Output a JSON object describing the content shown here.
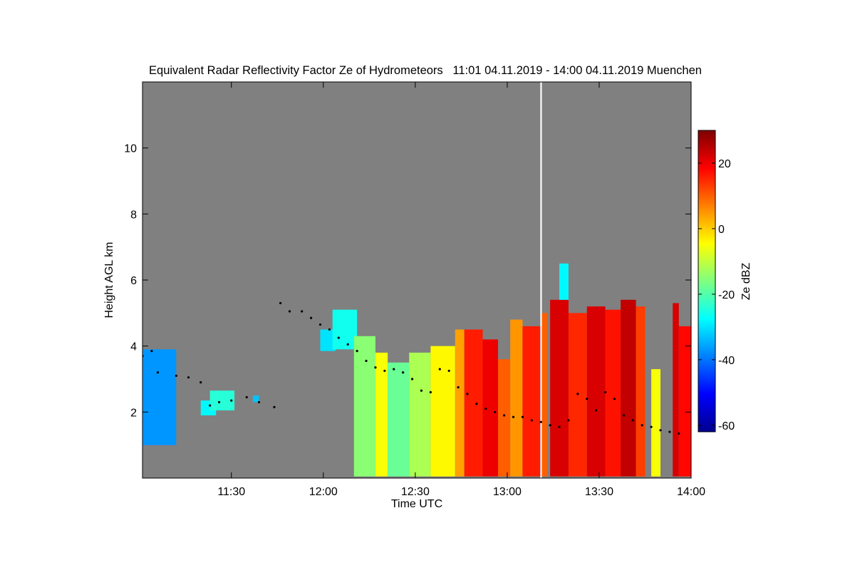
{
  "chart_data": {
    "type": "heatmap",
    "title": "Equivalent Radar Reflectivity Factor Ze of Hydrometeors   11:01 04.11.2019 - 14:00 04.11.2019 Muenchen",
    "xlabel": "Time UTC",
    "ylabel": "Height AGL km",
    "xlim_minutes_utc": [
      661,
      840
    ],
    "ylim_km": [
      0,
      12
    ],
    "x_ticks": [
      {
        "minute": 690,
        "label": "11:30"
      },
      {
        "minute": 720,
        "label": "12:00"
      },
      {
        "minute": 750,
        "label": "12:30"
      },
      {
        "minute": 780,
        "label": "13:00"
      },
      {
        "minute": 810,
        "label": "13:30"
      },
      {
        "minute": 840,
        "label": "14:00"
      }
    ],
    "y_ticks": [
      {
        "value": 2,
        "label": "2"
      },
      {
        "value": 4,
        "label": "4"
      },
      {
        "value": 6,
        "label": "6"
      },
      {
        "value": 8,
        "label": "8"
      },
      {
        "value": 10,
        "label": "10"
      }
    ],
    "colorbar": {
      "label": "Ze dBZ",
      "range": [
        -62,
        30
      ],
      "ticks": [
        {
          "value": -60,
          "label": "-60"
        },
        {
          "value": -40,
          "label": "-40"
        },
        {
          "value": -20,
          "label": "-20"
        },
        {
          "value": 0,
          "label": "0"
        },
        {
          "value": 20,
          "label": "20"
        }
      ],
      "colormap": "jet"
    },
    "colors": {
      "no_signal": "#808080",
      "missing_data": "#ffffff",
      "cloud_base_marker": "#000000"
    },
    "echo_regions": [
      {
        "t0": 661,
        "t1": 672,
        "h_bottom": 1.0,
        "h_top": 3.9,
        "ze": -37
      },
      {
        "t0": 680,
        "t1": 685,
        "h_bottom": 1.9,
        "h_top": 2.35,
        "ze": -28
      },
      {
        "t0": 683,
        "t1": 691,
        "h_bottom": 2.05,
        "h_top": 2.65,
        "ze": -24
      },
      {
        "t0": 697,
        "t1": 699,
        "h_bottom": 2.3,
        "h_top": 2.5,
        "ze": -33
      },
      {
        "t0": 719,
        "t1": 724,
        "h_bottom": 3.85,
        "h_top": 4.5,
        "ze": -30
      },
      {
        "t0": 723,
        "t1": 731,
        "h_bottom": 3.9,
        "h_top": 5.1,
        "ze": -26
      },
      {
        "t0": 730,
        "t1": 737,
        "h_bottom": 0.05,
        "h_top": 4.3,
        "ze": -15
      },
      {
        "t0": 737,
        "t1": 741,
        "h_bottom": 0.05,
        "h_top": 3.8,
        "ze": -5
      },
      {
        "t0": 741,
        "t1": 748,
        "h_bottom": 0.05,
        "h_top": 3.5,
        "ze": -18
      },
      {
        "t0": 748,
        "t1": 755,
        "h_bottom": 0.05,
        "h_top": 3.8,
        "ze": -12
      },
      {
        "t0": 755,
        "t1": 763,
        "h_bottom": 0.05,
        "h_top": 4.0,
        "ze": -4
      },
      {
        "t0": 763,
        "t1": 766,
        "h_bottom": 0.05,
        "h_top": 4.5,
        "ze": 4
      },
      {
        "t0": 766,
        "t1": 772,
        "h_bottom": 0.05,
        "h_top": 4.5,
        "ze": 16
      },
      {
        "t0": 772,
        "t1": 777,
        "h_bottom": 0.05,
        "h_top": 4.2,
        "ze": 20
      },
      {
        "t0": 777,
        "t1": 781,
        "h_bottom": 0.05,
        "h_top": 3.6,
        "ze": 10
      },
      {
        "t0": 781,
        "t1": 785,
        "h_bottom": 0.05,
        "h_top": 4.8,
        "ze": 5
      },
      {
        "t0": 785,
        "t1": 791,
        "h_bottom": 0.05,
        "h_top": 4.6,
        "ze": 16
      },
      {
        "t0": 791,
        "t1": 793,
        "h_bottom": 0.05,
        "h_top": 5.0,
        "ze": 10
      },
      {
        "t0": 794,
        "t1": 800,
        "h_bottom": 0.05,
        "h_top": 5.4,
        "ze": 22
      },
      {
        "t0": 800,
        "t1": 806,
        "h_bottom": 0.05,
        "h_top": 5.0,
        "ze": 15
      },
      {
        "t0": 806,
        "t1": 812,
        "h_bottom": 0.05,
        "h_top": 5.2,
        "ze": 22
      },
      {
        "t0": 812,
        "t1": 817,
        "h_bottom": 0.05,
        "h_top": 5.1,
        "ze": 17
      },
      {
        "t0": 817,
        "t1": 822,
        "h_bottom": 0.05,
        "h_top": 5.4,
        "ze": 24
      },
      {
        "t0": 822,
        "t1": 825,
        "h_bottom": 0.05,
        "h_top": 5.2,
        "ze": 13
      },
      {
        "t0": 827,
        "t1": 830,
        "h_bottom": 0.05,
        "h_top": 3.3,
        "ze": -5
      },
      {
        "t0": 797,
        "t1": 800,
        "h_bottom": 5.4,
        "h_top": 6.5,
        "ze": -28
      },
      {
        "t0": 834,
        "t1": 836,
        "h_bottom": 0.05,
        "h_top": 5.3,
        "ze": 22
      },
      {
        "t0": 836,
        "t1": 840,
        "h_bottom": 0.05,
        "h_top": 4.6,
        "ze": 18
      }
    ],
    "missing_intervals": [
      {
        "t0": 790.8,
        "t1": 791.3,
        "h_bottom": 0.0,
        "h_top": 12.0
      }
    ],
    "cloud_base_points": [
      {
        "t": 661,
        "h": 3.7
      },
      {
        "t": 664,
        "h": 3.85
      },
      {
        "t": 666,
        "h": 3.2
      },
      {
        "t": 672,
        "h": 3.1
      },
      {
        "t": 676,
        "h": 3.05
      },
      {
        "t": 680,
        "h": 2.9
      },
      {
        "t": 683,
        "h": 2.2
      },
      {
        "t": 686,
        "h": 2.3
      },
      {
        "t": 690,
        "h": 2.35
      },
      {
        "t": 695,
        "h": 2.45
      },
      {
        "t": 699,
        "h": 2.3
      },
      {
        "t": 704,
        "h": 2.15
      },
      {
        "t": 706,
        "h": 5.3
      },
      {
        "t": 709,
        "h": 5.05
      },
      {
        "t": 713,
        "h": 5.05
      },
      {
        "t": 716,
        "h": 4.85
      },
      {
        "t": 719,
        "h": 4.65
      },
      {
        "t": 722,
        "h": 4.5
      },
      {
        "t": 725,
        "h": 4.25
      },
      {
        "t": 728,
        "h": 4.05
      },
      {
        "t": 731,
        "h": 3.85
      },
      {
        "t": 734,
        "h": 3.55
      },
      {
        "t": 737,
        "h": 3.35
      },
      {
        "t": 740,
        "h": 3.25
      },
      {
        "t": 743,
        "h": 3.3
      },
      {
        "t": 746,
        "h": 3.2
      },
      {
        "t": 749,
        "h": 3.0
      },
      {
        "t": 752,
        "h": 2.65
      },
      {
        "t": 755,
        "h": 2.6
      },
      {
        "t": 758,
        "h": 3.3
      },
      {
        "t": 761,
        "h": 3.25
      },
      {
        "t": 764,
        "h": 2.75
      },
      {
        "t": 767,
        "h": 2.55
      },
      {
        "t": 770,
        "h": 2.25
      },
      {
        "t": 773,
        "h": 2.1
      },
      {
        "t": 776,
        "h": 2.0
      },
      {
        "t": 779,
        "h": 1.9
      },
      {
        "t": 782,
        "h": 1.85
      },
      {
        "t": 785,
        "h": 1.85
      },
      {
        "t": 788,
        "h": 1.75
      },
      {
        "t": 791,
        "h": 1.7
      },
      {
        "t": 794,
        "h": 1.6
      },
      {
        "t": 797,
        "h": 1.55
      },
      {
        "t": 800,
        "h": 1.75
      },
      {
        "t": 803,
        "h": 2.55
      },
      {
        "t": 806,
        "h": 2.4
      },
      {
        "t": 809,
        "h": 2.05
      },
      {
        "t": 812,
        "h": 2.6
      },
      {
        "t": 815,
        "h": 2.4
      },
      {
        "t": 818,
        "h": 1.9
      },
      {
        "t": 821,
        "h": 1.75
      },
      {
        "t": 824,
        "h": 1.6
      },
      {
        "t": 827,
        "h": 1.55
      },
      {
        "t": 830,
        "h": 1.45
      },
      {
        "t": 833,
        "h": 1.4
      },
      {
        "t": 836,
        "h": 1.35
      }
    ]
  }
}
